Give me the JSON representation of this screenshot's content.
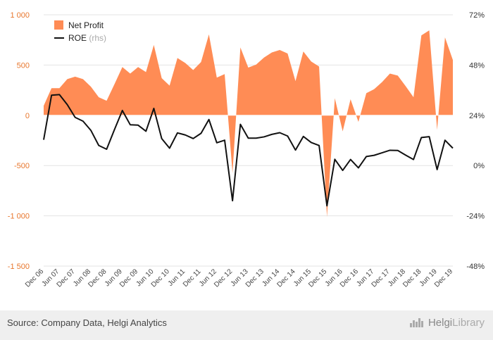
{
  "chart_data": {
    "type": "area+line",
    "series": [
      {
        "name": "Net Profit",
        "axis": "left",
        "type": "area",
        "color": "#ff8c55",
        "values": [
          95,
          270,
          270,
          360,
          385,
          360,
          285,
          180,
          145,
          310,
          480,
          415,
          480,
          430,
          700,
          370,
          295,
          570,
          520,
          450,
          530,
          805,
          375,
          410,
          -575,
          675,
          475,
          505,
          575,
          625,
          650,
          615,
          340,
          635,
          535,
          485,
          -1010,
          170,
          -160,
          160,
          -65,
          220,
          260,
          330,
          415,
          395,
          290,
          180,
          795,
          845,
          -145,
          775,
          550
        ]
      },
      {
        "name": "ROE",
        "legend_suffix": "(rhs)",
        "axis": "right",
        "type": "line",
        "color": "#111111",
        "values": [
          12.3,
          33.6,
          33.9,
          29.1,
          23.0,
          21.2,
          16.8,
          9.6,
          7.8,
          17.2,
          26.3,
          19.5,
          19.3,
          16.4,
          27.3,
          12.9,
          8.3,
          15.6,
          14.6,
          12.9,
          15.4,
          22.0,
          10.9,
          12.1,
          -16.8,
          19.7,
          13.1,
          13.1,
          13.7,
          14.9,
          15.7,
          14.1,
          7.4,
          13.9,
          11.0,
          9.6,
          -19.2,
          3.0,
          -2.3,
          2.9,
          -1.1,
          4.3,
          4.9,
          6.1,
          7.3,
          7.2,
          5.0,
          2.9,
          13.4,
          13.8,
          -1.9,
          12.1,
          8.3
        ]
      }
    ],
    "yleft": {
      "ylim": [
        -1500,
        1000
      ],
      "ticks": [
        1000,
        500,
        0,
        -500,
        -1000,
        -1500
      ],
      "tick_labels": [
        "1 000",
        "500",
        "0",
        "-500",
        "-1 000",
        "-1 500"
      ]
    },
    "yright": {
      "ylim": [
        -48,
        72
      ],
      "ticks": [
        72,
        48,
        24,
        0,
        -24,
        -48
      ],
      "tick_labels": [
        "72%",
        "48%",
        "24%",
        "0%",
        "-24%",
        "-48%"
      ]
    },
    "x_tick_labels": [
      "Dec 06",
      "Jun 07",
      "Dec 07",
      "Jun 08",
      "Dec 08",
      "Jun 09",
      "Dec 09",
      "Jun 10",
      "Dec 10",
      "Jun 11",
      "Dec 11",
      "Jun 12",
      "Dec 12",
      "Jun 13",
      "Dec 13",
      "Jun 14",
      "Dec 14",
      "Jun 15",
      "Dec 15",
      "Jun 16",
      "Dec 16",
      "Jun 17",
      "Dec 17",
      "Jun 18",
      "Dec 18",
      "Jun 19",
      "Dec 19"
    ],
    "grid": true,
    "legend": "top-left"
  },
  "footer": {
    "source": "Source: Company Data, Helgi Analytics",
    "brand_part1": "Helgi",
    "brand_part2": "Library",
    "brand_icon": "bar-chart-icon"
  }
}
